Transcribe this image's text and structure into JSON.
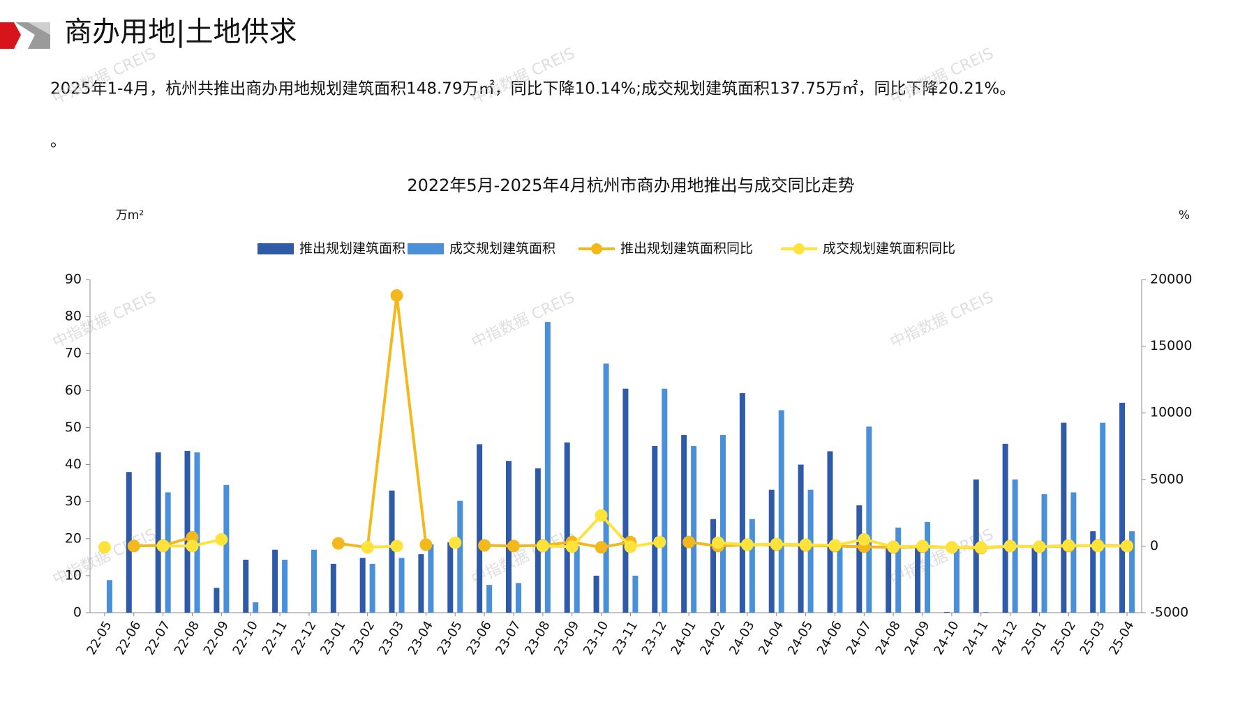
{
  "header": {
    "title": "商办用地|土地供求"
  },
  "summary": "2025年1-4月，杭州共推出商办用地规划建筑面积148.79万㎡，同比下降10.14%;成交规划建筑面积137.75万㎡，同比下降20.21%。",
  "summary_tail": "。",
  "watermark": "中指数据 CREIS",
  "chart_data": {
    "type": "bar",
    "title": "2022年5月-2025年4月杭州市商办用地推出与成交同比走势",
    "y_label": "万m²",
    "y2_label": "%",
    "categories": [
      "22-05",
      "22-06",
      "22-07",
      "22-08",
      "22-09",
      "22-10",
      "22-11",
      "22-12",
      "23-01",
      "23-02",
      "23-03",
      "23-04",
      "23-05",
      "23-06",
      "23-07",
      "23-08",
      "23-09",
      "23-10",
      "23-11",
      "23-12",
      "24-01",
      "24-02",
      "24-03",
      "24-04",
      "24-05",
      "24-06",
      "24-07",
      "24-08",
      "24-09",
      "24-10",
      "24-11",
      "24-12",
      "25-01",
      "25-02",
      "25-03",
      "25-04"
    ],
    "ylim": [
      0,
      90
    ],
    "yticks": [
      0,
      10,
      20,
      30,
      40,
      50,
      60,
      70,
      80,
      90
    ],
    "y2lim": [
      -5000,
      20000
    ],
    "y2ticks": [
      -5000,
      0,
      5000,
      10000,
      15000,
      20000
    ],
    "series": [
      {
        "name": "推出规划建筑面积",
        "type": "bar",
        "color": "#2f5aa8",
        "values": [
          0,
          38,
          43.3,
          43.7,
          6.7,
          14.3,
          17,
          0,
          13.2,
          14.8,
          33,
          15.8,
          19,
          45.5,
          41,
          39,
          46,
          10,
          60.5,
          45,
          48,
          25.3,
          59.3,
          33.2,
          40,
          43.6,
          29,
          18,
          18,
          0.2,
          36,
          45.6,
          18,
          51.3,
          22,
          56.7
        ]
      },
      {
        "name": "成交规划建筑面积",
        "type": "bar",
        "color": "#4a90d9",
        "values": [
          8.8,
          0,
          32.5,
          43.3,
          34.5,
          2.8,
          14.3,
          17,
          0,
          13.2,
          14.8,
          18.5,
          30.2,
          7.5,
          8,
          78.5,
          18,
          67.3,
          10,
          60.5,
          45,
          48,
          25.3,
          54.7,
          33.2,
          18,
          50.3,
          23,
          24.5,
          18,
          0.2,
          36,
          32,
          32.5,
          51.3,
          22
        ]
      },
      {
        "name": "推出规划建筑面积同比",
        "type": "line",
        "axis": "y2",
        "color": "#f2b81c",
        "values": [
          null,
          0,
          50,
          650,
          null,
          null,
          null,
          null,
          200,
          -100,
          18800,
          100,
          null,
          50,
          0,
          50,
          300,
          -100,
          300,
          null,
          300,
          0,
          100,
          100,
          50,
          0,
          -50,
          -100,
          -50,
          -100,
          -150,
          0,
          -50,
          0,
          50,
          0
        ]
      },
      {
        "name": "成交规划建筑面积同比",
        "type": "line",
        "axis": "y2",
        "color": "#ffe23a",
        "values": [
          -100,
          null,
          0,
          0,
          500,
          null,
          null,
          null,
          null,
          -100,
          0,
          null,
          250,
          null,
          null,
          0,
          -50,
          2300,
          -50,
          300,
          null,
          250,
          100,
          150,
          100,
          50,
          500,
          -50,
          0,
          -100,
          -100,
          0,
          -50,
          50,
          0,
          0
        ]
      }
    ]
  }
}
